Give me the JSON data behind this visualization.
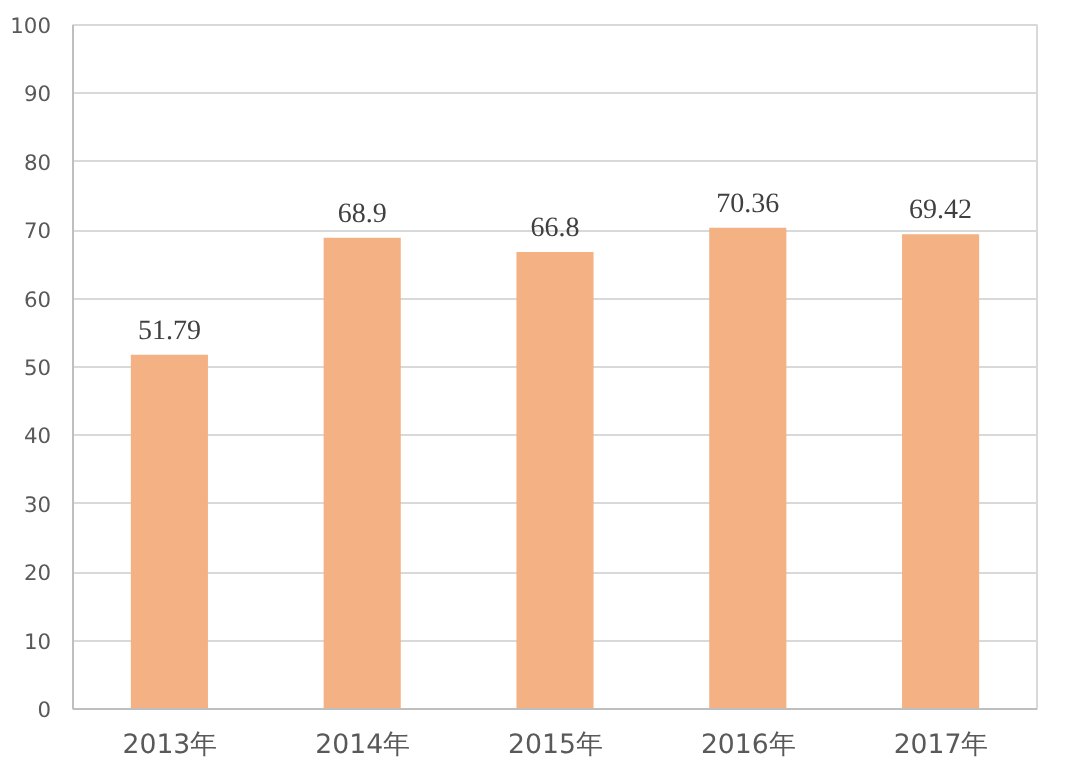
{
  "chart_data": {
    "type": "bar",
    "categories": [
      "2013年",
      "2014年",
      "2015年",
      "2016年",
      "2017年"
    ],
    "values": [
      51.79,
      68.9,
      66.8,
      70.36,
      69.42
    ],
    "color": "#f4b183",
    "ylim": [
      0,
      100
    ],
    "yticks": [
      0,
      10,
      20,
      30,
      40,
      50,
      60,
      70,
      80,
      90,
      100
    ],
    "grid": "y",
    "data_labels": true
  }
}
